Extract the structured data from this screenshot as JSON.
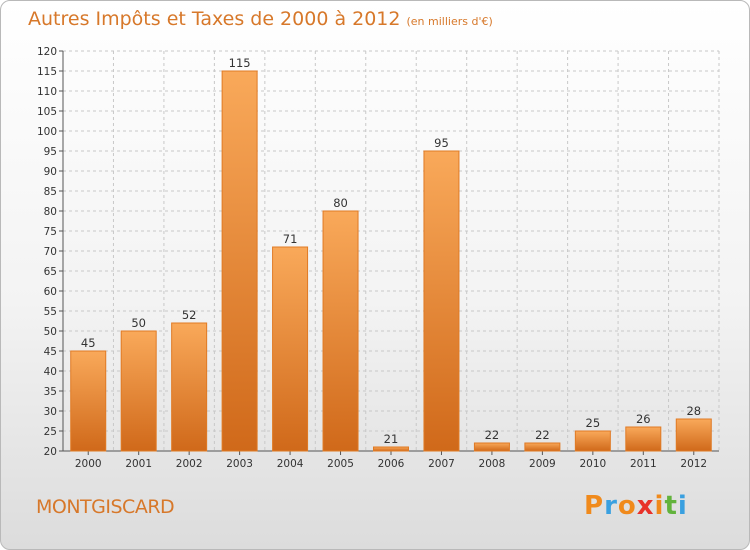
{
  "header": {
    "title": "Autres Impôts et Taxes de 2000 à 2012",
    "subtitle": "(en milliers d'€)"
  },
  "footer": {
    "commune": "MONTGISCARD",
    "logo_text": "Proxiti",
    "logo_colors": [
      "#f08a1c",
      "#3aa0e0",
      "#f08a1c",
      "#e8322a",
      "#f08a1c",
      "#62b33c",
      "#3aa0e0"
    ]
  },
  "chart_data": {
    "type": "bar",
    "title": "Autres Impôts et Taxes de 2000 à 2012",
    "subtitle": "(en milliers d'€)",
    "xlabel": "",
    "ylabel": "",
    "categories": [
      "2000",
      "2001",
      "2002",
      "2003",
      "2004",
      "2005",
      "2006",
      "2007",
      "2008",
      "2009",
      "2010",
      "2011",
      "2012"
    ],
    "values": [
      45,
      50,
      52,
      115,
      71,
      80,
      21,
      95,
      22,
      22,
      25,
      26,
      28
    ],
    "data_labels": [
      "45",
      "50",
      "52",
      "115",
      "71",
      "80",
      "21",
      "95",
      "22",
      "22",
      "25",
      "26",
      "28"
    ],
    "ylim": [
      20,
      120
    ],
    "yticks": [
      20,
      25,
      30,
      35,
      40,
      45,
      50,
      55,
      60,
      65,
      70,
      75,
      80,
      85,
      90,
      95,
      100,
      105,
      110,
      115,
      120
    ],
    "grid": true,
    "colors": {
      "bar_light": "#f9a95a",
      "bar_dark": "#d0691a",
      "bar_edge": "#e07a24",
      "grid": "#c8c8c8"
    }
  }
}
